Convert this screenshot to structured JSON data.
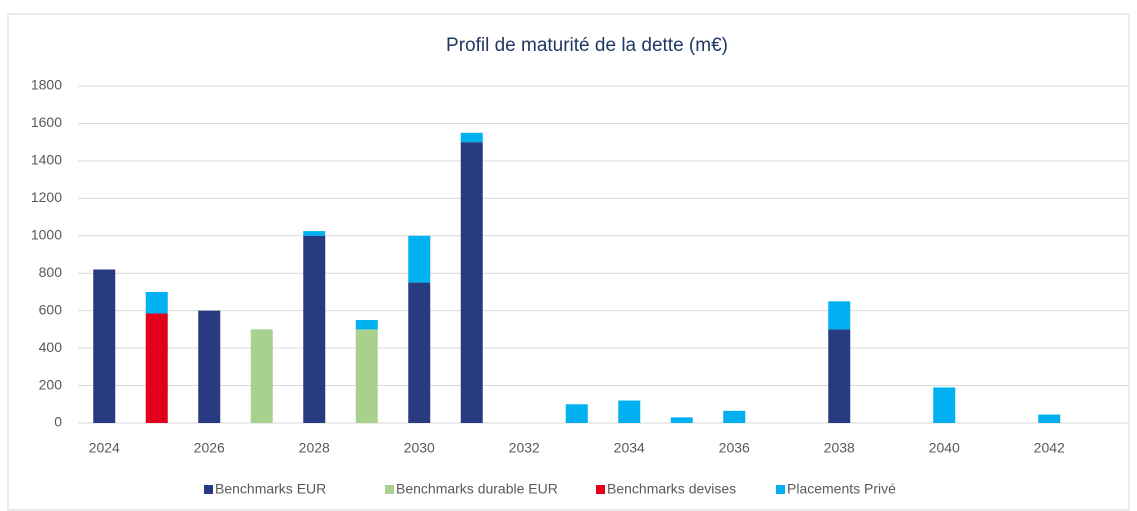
{
  "chart_data": {
    "type": "bar",
    "stacked": true,
    "title": "Profil de maturité de la dette (m€)",
    "categories": [
      "2024",
      null,
      "2026",
      null,
      "2028",
      null,
      "2030",
      null,
      "2032",
      null,
      "2034",
      null,
      "2036",
      null,
      "2038",
      null,
      "2040",
      null,
      "2042",
      null
    ],
    "series": [
      {
        "name": "Benchmarks EUR",
        "color": "#283a80",
        "values": [
          820,
          0,
          600,
          0,
          1000,
          0,
          750,
          1500,
          0,
          0,
          0,
          0,
          0,
          0,
          500,
          0,
          0,
          0,
          0,
          0
        ]
      },
      {
        "name": "Benchmarks durable EUR",
        "color": "#a9d18e",
        "values": [
          0,
          0,
          0,
          500,
          0,
          500,
          0,
          0,
          0,
          0,
          0,
          0,
          0,
          0,
          0,
          0,
          0,
          0,
          0,
          0
        ]
      },
      {
        "name": "Benchmarks devises",
        "color": "#e3001b",
        "values": [
          0,
          585,
          0,
          0,
          0,
          0,
          0,
          0,
          0,
          0,
          0,
          0,
          0,
          0,
          0,
          0,
          0,
          0,
          0,
          0
        ]
      },
      {
        "name": "Placements Privé",
        "color": "#00b0f0",
        "values": [
          0,
          115,
          0,
          0,
          25,
          50,
          250,
          50,
          0,
          100,
          120,
          30,
          65,
          0,
          150,
          0,
          190,
          0,
          45,
          0
        ]
      }
    ],
    "ylim": [
      0,
      1800
    ],
    "yticks": [
      0,
      200,
      400,
      600,
      800,
      1000,
      1200,
      1400,
      1600,
      1800
    ],
    "grid": true,
    "legend": "bottom"
  }
}
